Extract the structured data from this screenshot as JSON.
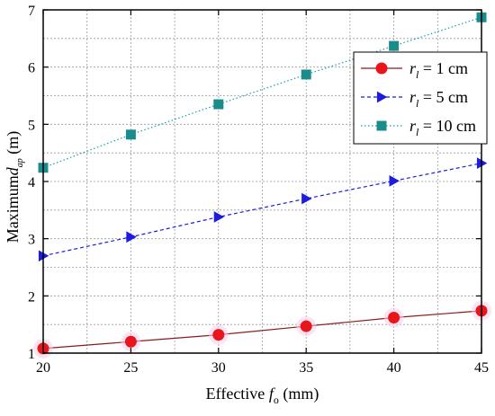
{
  "chart_data": {
    "type": "line",
    "x": [
      20,
      25,
      30,
      35,
      40,
      45
    ],
    "xlim": [
      20,
      45
    ],
    "ylim": [
      1,
      7
    ],
    "xticks": [
      20,
      25,
      30,
      35,
      40,
      45
    ],
    "yticks": [
      1,
      2,
      3,
      4,
      5,
      6,
      7
    ],
    "xlabel": {
      "prefix": "Effective ",
      "var": "f",
      "sub": "o",
      "suffix": " (mm)"
    },
    "ylabel": {
      "prefix": "Maximum",
      "var": "d",
      "sub": "ap",
      "suffix": " (m)"
    },
    "grid": true,
    "legend_position": "top-right",
    "series": [
      {
        "label": {
          "var": "r",
          "sub": "l",
          "rest": " = 1 cm"
        },
        "marker": "circle",
        "line": "solid",
        "color": "#e8151b",
        "line_color": "#8b1a1a",
        "values": [
          1.08,
          1.2,
          1.32,
          1.47,
          1.62,
          1.74
        ]
      },
      {
        "label": {
          "var": "r",
          "sub": "l",
          "rest": " = 5 cm"
        },
        "marker": "triangle-right",
        "line": "dashed",
        "color": "#1c1ce0",
        "line_color": "#1c1ce0",
        "values": [
          2.7,
          3.03,
          3.38,
          3.7,
          4.01,
          4.32
        ]
      },
      {
        "label": {
          "var": "r",
          "sub": "l",
          "rest": " = 10 cm"
        },
        "marker": "square",
        "line": "dotted",
        "color": "#1a8c8c",
        "line_color": "#1a9aaa",
        "values": [
          4.24,
          4.82,
          5.35,
          5.87,
          6.37,
          6.87
        ]
      }
    ]
  }
}
